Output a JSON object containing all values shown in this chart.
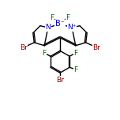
{
  "bg_color": "#ffffff",
  "line_color": "#000000",
  "atom_colors": {
    "Br": "#8B0000",
    "N": "#0000CD",
    "B": "#0000CD",
    "F": "#006400",
    "C": "#000000"
  },
  "line_width": 1.0,
  "font_size_atom": 6.5,
  "figsize": [
    1.52,
    1.52
  ],
  "dpi": 100
}
